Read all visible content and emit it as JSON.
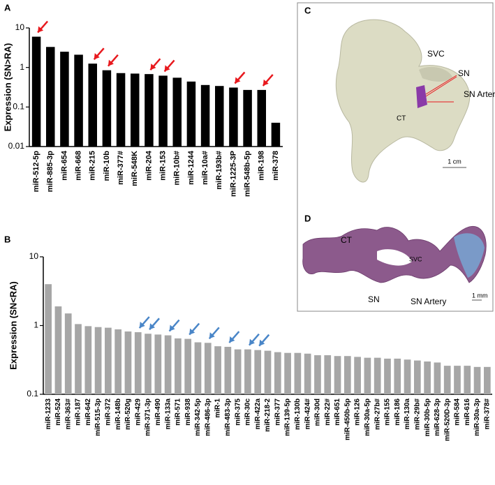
{
  "chart_data": [
    {
      "type": "bar",
      "panel": "A",
      "y_label": "Expression (SN>RA)",
      "log_scale": true,
      "categories": [
        "miR-512-5p",
        "miR-885-3p",
        "miR-654",
        "miR-668",
        "miR-215",
        "miR-10b",
        "miR-377#",
        "miR-548K",
        "miR-204",
        "miR-153",
        "miR-10b#",
        "miR-1244",
        "miR-10a#",
        "miR-193b#",
        "miR-1225-3P",
        "miR-548b-5p",
        "miR-198",
        "miR-378"
      ],
      "values": [
        6,
        3.3,
        2.5,
        2.1,
        1.25,
        0.85,
        0.72,
        0.7,
        0.68,
        0.62,
        0.55,
        0.44,
        0.36,
        0.34,
        0.31,
        0.27,
        0.27,
        0.04
      ],
      "color": "#000000",
      "ylim": [
        0.01,
        10
      ],
      "yticks": [
        0.01,
        0.1,
        1,
        10
      ],
      "arrows": [
        0,
        4,
        5,
        8,
        9,
        14,
        16
      ],
      "arrow_color": "#e8191e"
    },
    {
      "type": "bar",
      "panel": "B",
      "y_label": "Expression (SN<RA)",
      "log_scale": true,
      "categories": [
        "miR-1233",
        "miR-524",
        "miR-363#",
        "miR-187",
        "miR-642",
        "miR-515-3p",
        "miR-372",
        "miR-148b",
        "miR-520g",
        "miR-429",
        "miR-371-3p",
        "miR-490",
        "miR-133a",
        "miR-571",
        "miR-938",
        "miR-342-5p",
        "miR-486-3p",
        "miR-1",
        "miR-483-3p",
        "miR-375",
        "miR-30c",
        "miR-422a",
        "miR-218-2",
        "miR-377",
        "miR-139-5p",
        "miR-130b",
        "miR-424#",
        "miR-30d",
        "miR-22#",
        "miR-651",
        "miR-450b-5p",
        "miR-126",
        "miR-30a-5p",
        "miR-27b#",
        "miR-155",
        "miR-186",
        "miR-130a",
        "miR-29b#",
        "miR-30b-5p",
        "miR-628-3p",
        "miR-520D-3p",
        "miR-584",
        "miR-616",
        "miR-30a-3p",
        "miR-378#"
      ],
      "values": [
        4,
        1.9,
        1.5,
        1.05,
        0.98,
        0.95,
        0.93,
        0.88,
        0.82,
        0.8,
        0.76,
        0.74,
        0.72,
        0.65,
        0.64,
        0.57,
        0.56,
        0.5,
        0.49,
        0.45,
        0.45,
        0.44,
        0.43,
        0.41,
        0.4,
        0.4,
        0.39,
        0.37,
        0.37,
        0.36,
        0.36,
        0.35,
        0.34,
        0.34,
        0.33,
        0.33,
        0.32,
        0.31,
        0.3,
        0.29,
        0.26,
        0.26,
        0.26,
        0.25,
        0.25
      ],
      "color": "#a6a6a6",
      "ylim": [
        0.1,
        10
      ],
      "yticks": [
        0.1,
        1,
        10
      ],
      "arrows": [
        9,
        10,
        12,
        14,
        16,
        18,
        20,
        21
      ],
      "arrow_color": "#4a86c8"
    }
  ],
  "images": [
    {
      "panel": "C",
      "labels": [
        "SVC",
        "SN",
        "SN Artery",
        "CT"
      ],
      "scale": "1 cm"
    },
    {
      "panel": "D",
      "labels": [
        "CT",
        "SVC",
        "SN",
        "SN Artery"
      ],
      "scale": "1 mm"
    }
  ]
}
